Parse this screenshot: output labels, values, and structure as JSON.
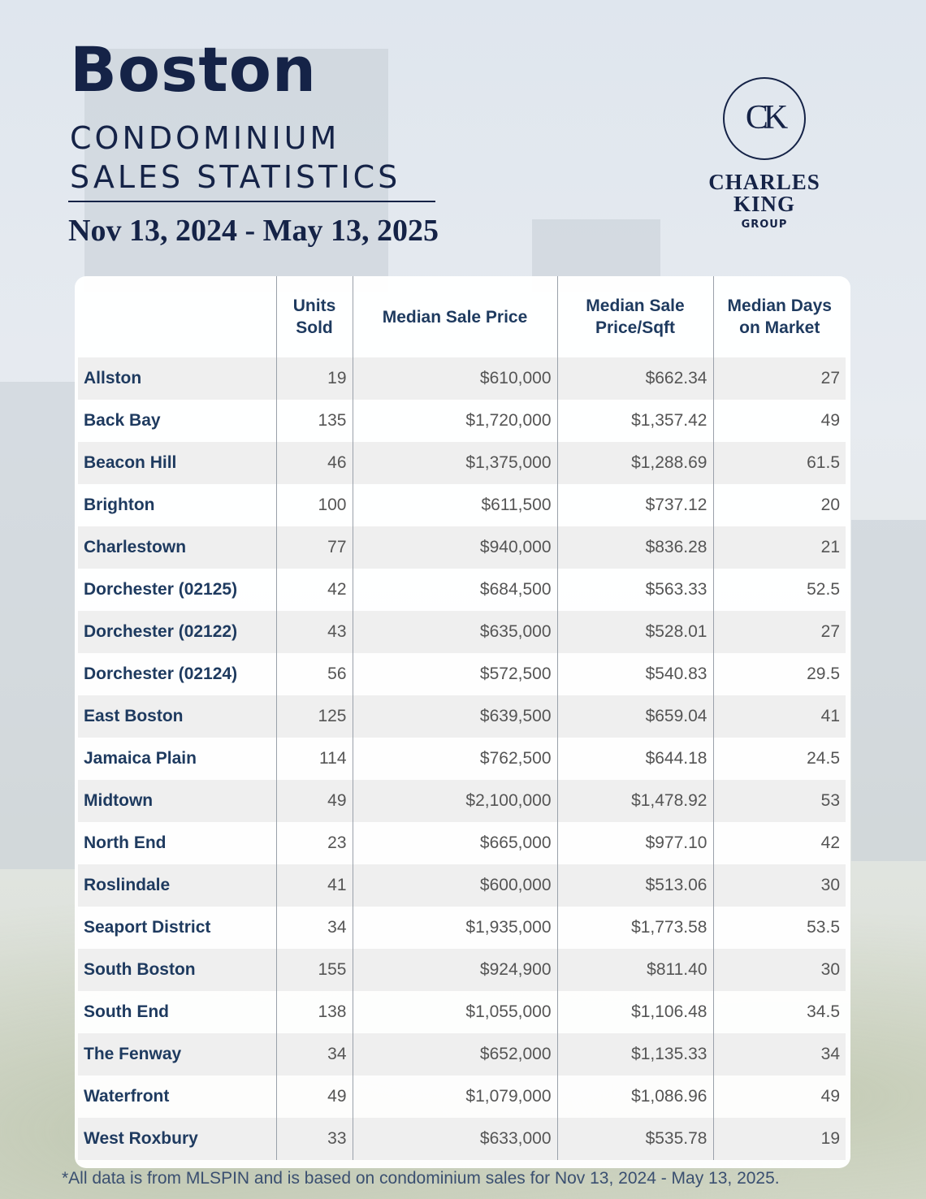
{
  "header": {
    "title": "Boston",
    "subtitle_line1": "CONDOMINIUM",
    "subtitle_line2": "SALES STATISTICS",
    "date_range": "Nov 13, 2024 - May 13,  2025"
  },
  "logo": {
    "monogram": "CK",
    "name": "CHARLES KING",
    "tagline": "GROUP"
  },
  "table": {
    "columns": [
      "",
      "Units Sold",
      "Median Sale Price",
      "Median Sale Price/Sqft",
      "Median Days on Market"
    ],
    "rows": [
      {
        "neighborhood": "Allston",
        "units_sold": "19",
        "median_sale_price": "$610,000",
        "median_price_sqft": "$662.34",
        "median_days": "27"
      },
      {
        "neighborhood": "Back Bay",
        "units_sold": "135",
        "median_sale_price": "$1,720,000",
        "median_price_sqft": "$1,357.42",
        "median_days": "49"
      },
      {
        "neighborhood": "Beacon Hill",
        "units_sold": "46",
        "median_sale_price": "$1,375,000",
        "median_price_sqft": "$1,288.69",
        "median_days": "61.5"
      },
      {
        "neighborhood": "Brighton",
        "units_sold": "100",
        "median_sale_price": "$611,500",
        "median_price_sqft": "$737.12",
        "median_days": "20"
      },
      {
        "neighborhood": "Charlestown",
        "units_sold": "77",
        "median_sale_price": "$940,000",
        "median_price_sqft": "$836.28",
        "median_days": "21"
      },
      {
        "neighborhood": "Dorchester (02125)",
        "units_sold": "42",
        "median_sale_price": "$684,500",
        "median_price_sqft": "$563.33",
        "median_days": "52.5"
      },
      {
        "neighborhood": "Dorchester (02122)",
        "units_sold": "43",
        "median_sale_price": "$635,000",
        "median_price_sqft": "$528.01",
        "median_days": "27"
      },
      {
        "neighborhood": "Dorchester (02124)",
        "units_sold": "56",
        "median_sale_price": "$572,500",
        "median_price_sqft": "$540.83",
        "median_days": "29.5"
      },
      {
        "neighborhood": "East Boston",
        "units_sold": "125",
        "median_sale_price": "$639,500",
        "median_price_sqft": "$659.04",
        "median_days": "41"
      },
      {
        "neighborhood": "Jamaica Plain",
        "units_sold": "114",
        "median_sale_price": "$762,500",
        "median_price_sqft": "$644.18",
        "median_days": "24.5"
      },
      {
        "neighborhood": "Midtown",
        "units_sold": "49",
        "median_sale_price": "$2,100,000",
        "median_price_sqft": "$1,478.92",
        "median_days": "53"
      },
      {
        "neighborhood": "North End",
        "units_sold": "23",
        "median_sale_price": "$665,000",
        "median_price_sqft": "$977.10",
        "median_days": "42"
      },
      {
        "neighborhood": "Roslindale",
        "units_sold": "41",
        "median_sale_price": "$600,000",
        "median_price_sqft": "$513.06",
        "median_days": "30"
      },
      {
        "neighborhood": "Seaport District",
        "units_sold": "34",
        "median_sale_price": "$1,935,000",
        "median_price_sqft": "$1,773.58",
        "median_days": "53.5"
      },
      {
        "neighborhood": "South Boston",
        "units_sold": "155",
        "median_sale_price": "$924,900",
        "median_price_sqft": "$811.40",
        "median_days": "30"
      },
      {
        "neighborhood": "South End",
        "units_sold": "138",
        "median_sale_price": "$1,055,000",
        "median_price_sqft": "$1,106.48",
        "median_days": "34.5"
      },
      {
        "neighborhood": "The Fenway",
        "units_sold": "34",
        "median_sale_price": "$652,000",
        "median_price_sqft": "$1,135.33",
        "median_days": "34"
      },
      {
        "neighborhood": "Waterfront",
        "units_sold": "49",
        "median_sale_price": "$1,079,000",
        "median_price_sqft": "$1,086.96",
        "median_days": "49"
      },
      {
        "neighborhood": "West Roxbury",
        "units_sold": "33",
        "median_sale_price": "$633,000",
        "median_price_sqft": "$535.78",
        "median_days": "19"
      }
    ]
  },
  "footnote": "*All data is from MLSPIN and is based on condominium sales for Nov 13, 2024 - May 13, 2025.",
  "colors": {
    "navy": "#152347",
    "header_text": "#1e3a5f",
    "stripe": "#efefef"
  }
}
